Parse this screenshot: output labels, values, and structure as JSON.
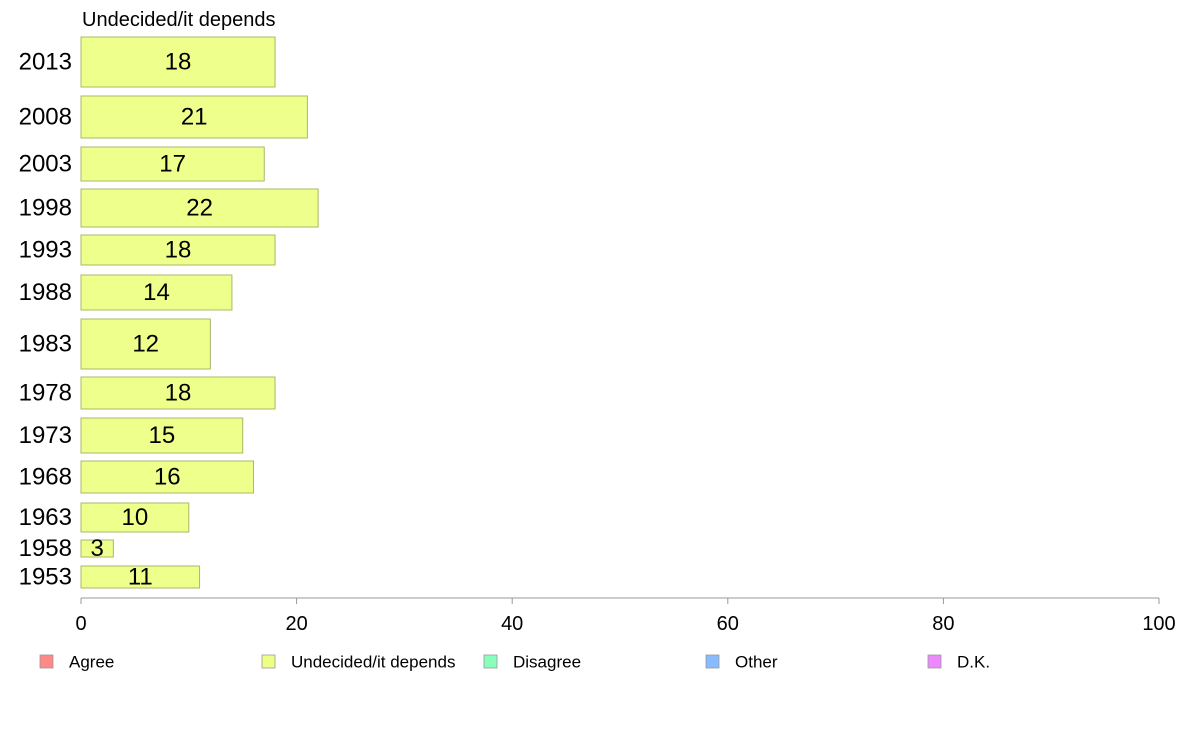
{
  "chart_data": {
    "type": "bar",
    "orientation": "horizontal",
    "title": "Undecided/it depends",
    "categories": [
      "2013",
      "2008",
      "2003",
      "1998",
      "1993",
      "1988",
      "1983",
      "1978",
      "1973",
      "1968",
      "1963",
      "1958",
      "1953"
    ],
    "values": [
      18,
      21,
      17,
      22,
      18,
      14,
      12,
      18,
      15,
      16,
      10,
      3,
      11
    ],
    "value_labels": [
      "18",
      "21",
      "17",
      "22",
      "18",
      "14",
      "12",
      "18",
      "15",
      "16",
      "10",
      "3",
      "11"
    ],
    "xlim": [
      0,
      100
    ],
    "xticks": [
      "0",
      "20",
      "40",
      "60",
      "80",
      "100"
    ],
    "grid": false,
    "bar_color": "#eeff8c",
    "legend_position": "bottom",
    "legend": [
      {
        "label": "Agree",
        "color": "#ff8888"
      },
      {
        "label": "Undecided/it depends",
        "color": "#eeff88"
      },
      {
        "label": "Disagree",
        "color": "#88ffbb"
      },
      {
        "label": "Other",
        "color": "#88bbff"
      },
      {
        "label": "D.K.",
        "color": "#ee88ff"
      }
    ]
  }
}
